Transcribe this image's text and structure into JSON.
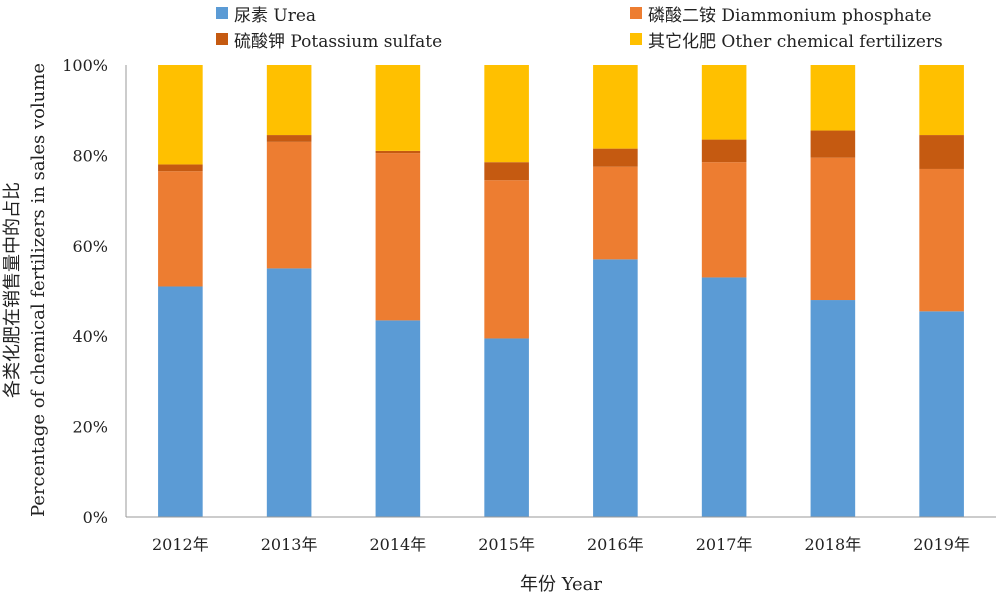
{
  "chart_data": {
    "type": "bar",
    "stacked": true,
    "categories": [
      "2012年",
      "2013年",
      "2014年",
      "2015年",
      "2016年",
      "2017年",
      "2018年",
      "2019年"
    ],
    "series": [
      {
        "name": "尿素 Urea",
        "color": "#5B9BD5",
        "values": [
          51,
          55,
          43.5,
          39.5,
          57,
          53,
          48,
          45.5
        ]
      },
      {
        "name": "磷酸二铵 Diammonium phosphate",
        "color": "#ED7D31",
        "values": [
          25.5,
          28,
          37,
          35,
          20.5,
          25.5,
          31.5,
          31.5
        ]
      },
      {
        "name": "硫酸钾 Potassium sulfate",
        "color": "#C55A11",
        "values": [
          1.5,
          1.5,
          0.5,
          4,
          4,
          5,
          6,
          7.5
        ]
      },
      {
        "name": "其它化肥 Other chemical fertilizers",
        "color": "#FFC000",
        "values": [
          22,
          15.5,
          19,
          21.5,
          18.5,
          16.5,
          14.5,
          15.5
        ]
      }
    ],
    "yticks": [
      "0%",
      "20%",
      "40%",
      "60%",
      "80%",
      "100%"
    ],
    "ylim": [
      0,
      100
    ],
    "xlabel": "年份 Year",
    "ylabel_line1": "各类化肥在销售量中的占比",
    "ylabel_line2": "Percentage of chemical fertilizers in sales volume",
    "grid": false,
    "legend_position": "top"
  }
}
